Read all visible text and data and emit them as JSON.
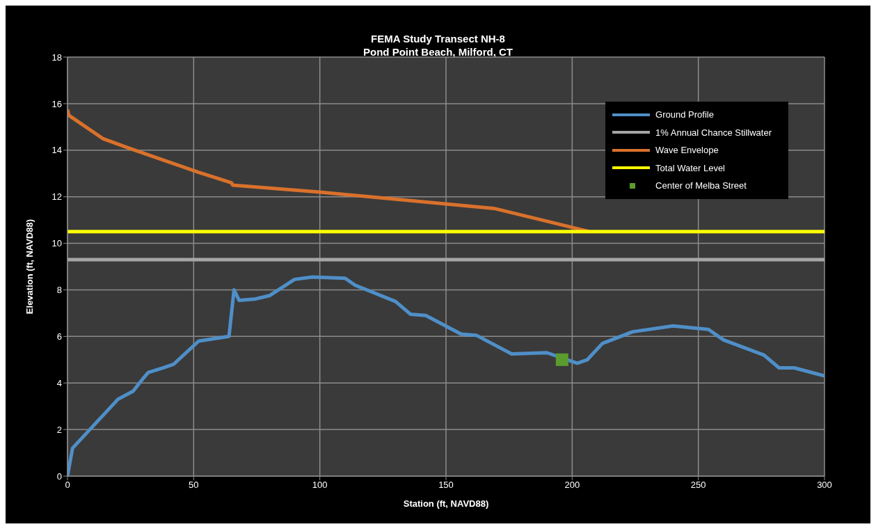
{
  "chart_data": {
    "type": "line",
    "title": "FEMA Study Transect NH-8",
    "subtitle": "Pond Point Beach, Milford, CT",
    "xlabel": "Station (ft, NAVD88)",
    "ylabel": "Elevation (ft, NAVD88)",
    "xlim": [
      0,
      300
    ],
    "xticks": [
      0,
      50,
      100,
      150,
      200,
      250,
      300
    ],
    "ylim": [
      0,
      18
    ],
    "yticks": [
      0,
      2,
      4,
      6,
      8,
      10,
      12,
      14,
      16,
      18
    ],
    "grid": true,
    "legend": "top right",
    "marker": "none",
    "line_style": "solid",
    "series": [
      {
        "name": "Ground Profile",
        "color": "#4f8fc8",
        "x": [
          0,
          2,
          20,
          26,
          30,
          32,
          38,
          42,
          52,
          64,
          66,
          68,
          74,
          80,
          90,
          97,
          110,
          114,
          130,
          136,
          142,
          156,
          162,
          176,
          190,
          202,
          206,
          212,
          224,
          240,
          254,
          260,
          276,
          282,
          288,
          300
        ],
        "values": [
          0,
          1.2,
          3.3,
          3.65,
          4.2,
          4.45,
          4.65,
          4.8,
          5.8,
          6.0,
          8.0,
          7.55,
          7.6,
          7.75,
          8.45,
          8.55,
          8.5,
          8.2,
          7.5,
          6.95,
          6.9,
          6.1,
          6.05,
          5.25,
          5.3,
          4.85,
          5.0,
          5.7,
          6.2,
          6.45,
          6.3,
          5.85,
          5.2,
          4.65,
          4.65,
          4.3
        ]
      },
      {
        "name": "1% Annual Chance Stillwater",
        "color": "#a6a6a6",
        "x": [
          0,
          300
        ],
        "values": [
          9.3,
          9.3
        ]
      },
      {
        "name": "Wave Envelope",
        "color": "#d9712b",
        "x": [
          0,
          0.5,
          14,
          24,
          52,
          65,
          65.5,
          100,
          169,
          207
        ],
        "values": [
          15.75,
          15.5,
          14.5,
          14.1,
          13.05,
          12.6,
          12.5,
          12.2,
          11.5,
          10.5
        ]
      },
      {
        "name": "Total Water Level",
        "color": "#ffff00",
        "x": [
          0,
          300
        ],
        "values": [
          10.5,
          10.5
        ]
      },
      {
        "name": "Center of Melba Street",
        "type": "scatter",
        "marker": "square",
        "color": "#5b9c2e",
        "x": [
          196
        ],
        "values": [
          5.0
        ]
      }
    ]
  }
}
